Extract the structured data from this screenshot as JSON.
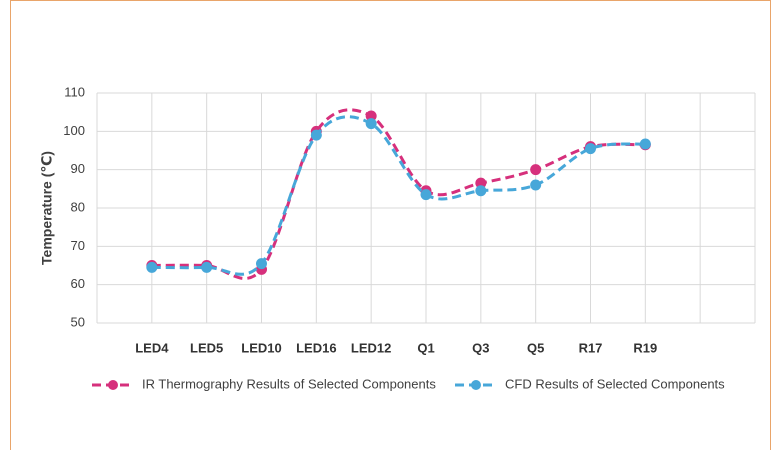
{
  "chart_data": {
    "type": "line",
    "y_label": "Temperature (℃)",
    "categories": [
      "LED4",
      "LED5",
      "LED10",
      "LED16",
      "LED12",
      "Q1",
      "Q3",
      "Q5",
      "R17",
      "R19"
    ],
    "series": [
      {
        "name": "IR Thermography Results of Selected Components",
        "color": "#d6307c",
        "values": [
          65,
          65,
          64,
          100,
          104,
          84.5,
          86.5,
          90,
          96,
          96.5
        ]
      },
      {
        "name": "CFD Results of Selected Components",
        "color": "#47a7d9",
        "values": [
          64.5,
          64.5,
          65.5,
          99,
          102,
          83.5,
          84.5,
          86,
          95.5,
          96.7
        ]
      }
    ],
    "ylim": [
      50,
      110
    ],
    "yticks": [
      50,
      60,
      70,
      80,
      90,
      100,
      110
    ],
    "grid": true,
    "legend": "bottom"
  }
}
